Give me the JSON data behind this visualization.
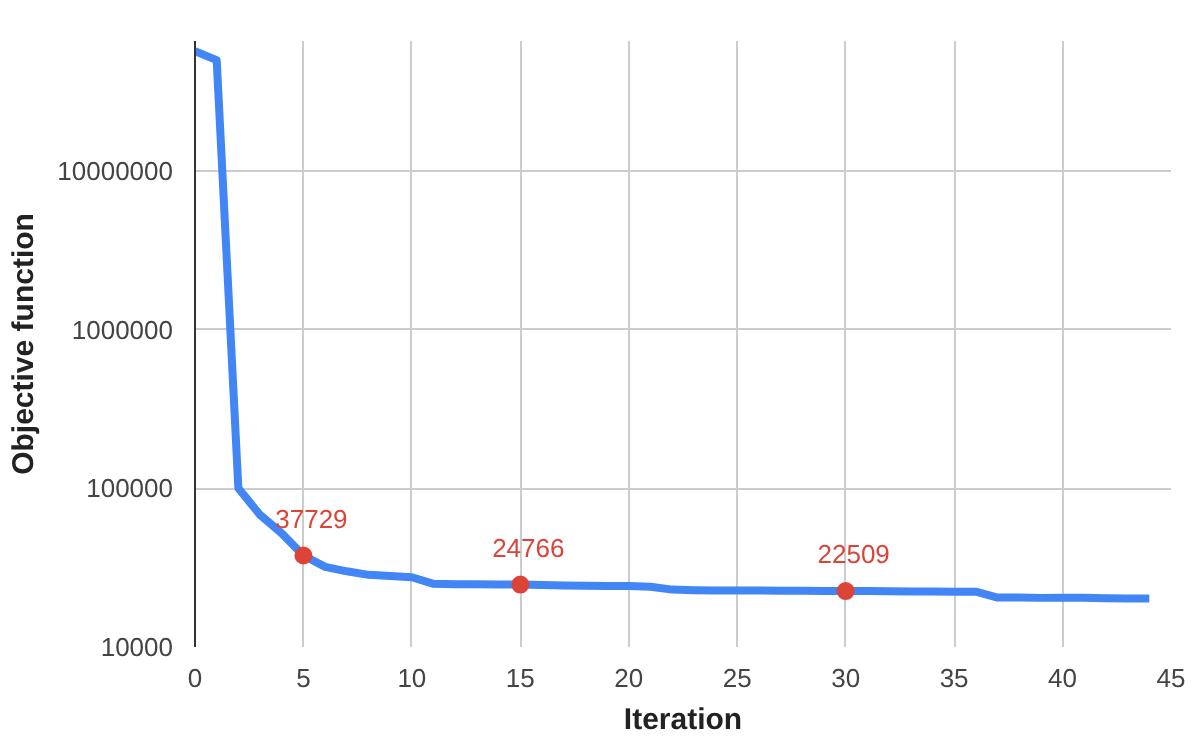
{
  "chart_data": {
    "type": "line",
    "xlabel": "Iteration",
    "ylabel": "Objective function",
    "log": "y",
    "grid": true,
    "xlim": [
      0,
      45
    ],
    "xticks": [
      0,
      5,
      10,
      15,
      20,
      25,
      30,
      35,
      40,
      45
    ],
    "ylim": [
      10000,
      66000000
    ],
    "yticks": [
      10000,
      100000,
      1000000,
      10000000
    ],
    "series": [
      {
        "color": "#4285f4",
        "marker": "none",
        "x": [
          0,
          1,
          2,
          3,
          4,
          5,
          6,
          7,
          8,
          9,
          10,
          11,
          12,
          13,
          14,
          15,
          16,
          17,
          18,
          19,
          20,
          21,
          22,
          23,
          24,
          25,
          26,
          27,
          28,
          29,
          30,
          31,
          32,
          33,
          34,
          35,
          36,
          37,
          38,
          39,
          40,
          41,
          42,
          43,
          44
        ],
        "values": [
          57000000,
          50000000,
          100000,
          68000,
          52000,
          37729,
          32000,
          30000,
          28500,
          28000,
          27500,
          25000,
          24900,
          24850,
          24800,
          24766,
          24600,
          24400,
          24300,
          24200,
          24200,
          24000,
          23000,
          22800,
          22700,
          22700,
          22700,
          22600,
          22600,
          22550,
          22509,
          22500,
          22450,
          22400,
          22400,
          22300,
          22300,
          20500,
          20500,
          20400,
          20400,
          20400,
          20300,
          20200,
          20200
        ]
      },
      {
        "type": "scatter",
        "color": "#db4437",
        "marker": "circle",
        "x": [
          5,
          15,
          30
        ],
        "values": [
          37729,
          24766,
          22509
        ],
        "value_labels": [
          "37729",
          "24766",
          "22509"
        ]
      }
    ]
  }
}
